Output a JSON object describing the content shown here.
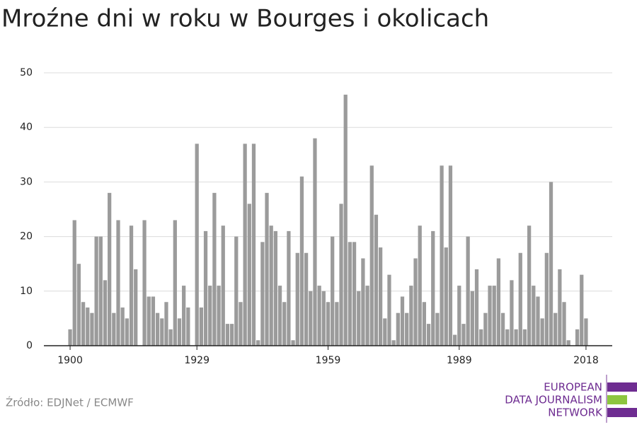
{
  "chart_data": {
    "type": "bar",
    "title": "Mroźne dni w roku w Bourges i okolicach",
    "source": "Źródło: EDJNet / ECMWF",
    "logo": [
      "EUROPEAN",
      "DATA JOURNALISM",
      "NETWORK"
    ],
    "color": "#9b9b9b",
    "grid": true,
    "x": [
      1900,
      1901,
      1902,
      1903,
      1904,
      1905,
      1906,
      1907,
      1908,
      1909,
      1910,
      1911,
      1912,
      1913,
      1914,
      1915,
      1916,
      1917,
      1918,
      1919,
      1920,
      1921,
      1922,
      1923,
      1924,
      1925,
      1926,
      1927,
      1928,
      1929,
      1930,
      1931,
      1932,
      1933,
      1934,
      1935,
      1936,
      1937,
      1938,
      1939,
      1940,
      1941,
      1942,
      1943,
      1944,
      1945,
      1946,
      1947,
      1948,
      1949,
      1950,
      1951,
      1952,
      1953,
      1954,
      1955,
      1956,
      1957,
      1958,
      1959,
      1960,
      1961,
      1962,
      1963,
      1964,
      1965,
      1966,
      1967,
      1968,
      1969,
      1970,
      1971,
      1972,
      1973,
      1974,
      1975,
      1976,
      1977,
      1978,
      1979,
      1980,
      1981,
      1982,
      1983,
      1984,
      1985,
      1986,
      1987,
      1988,
      1989,
      1990,
      1991,
      1992,
      1993,
      1994,
      1995,
      1996,
      1997,
      1998,
      1999,
      2000,
      2001,
      2002,
      2003,
      2004,
      2005,
      2006,
      2007,
      2008,
      2009,
      2010,
      2011,
      2012,
      2013,
      2014,
      2015,
      2016,
      2017,
      2018
    ],
    "values": [
      3,
      23,
      15,
      8,
      7,
      6,
      20,
      20,
      12,
      28,
      6,
      23,
      7,
      5,
      22,
      14,
      0,
      23,
      9,
      9,
      6,
      5,
      8,
      3,
      23,
      5,
      11,
      7,
      0,
      37,
      7,
      21,
      11,
      28,
      11,
      22,
      4,
      4,
      20,
      8,
      37,
      26,
      37,
      1,
      19,
      28,
      22,
      21,
      11,
      8,
      21,
      1,
      17,
      31,
      17,
      10,
      38,
      11,
      10,
      8,
      20,
      8,
      26,
      46,
      19,
      19,
      10,
      16,
      11,
      33,
      24,
      18,
      5,
      13,
      1,
      6,
      9,
      6,
      11,
      16,
      22,
      8,
      4,
      21,
      6,
      33,
      18,
      33,
      2,
      11,
      4,
      20,
      10,
      14,
      3,
      6,
      11,
      11,
      16,
      6,
      3,
      12,
      3,
      17,
      3,
      22,
      11,
      9,
      5,
      17,
      30,
      6,
      14,
      8,
      1,
      0,
      3,
      13,
      5
    ],
    "xlim": [
      1894,
      2024
    ],
    "xticks": [
      1900,
      1929,
      1959,
      1989,
      2018
    ],
    "ylim": [
      0,
      50
    ],
    "yticks": [
      0,
      10,
      20,
      30,
      40,
      50
    ]
  }
}
